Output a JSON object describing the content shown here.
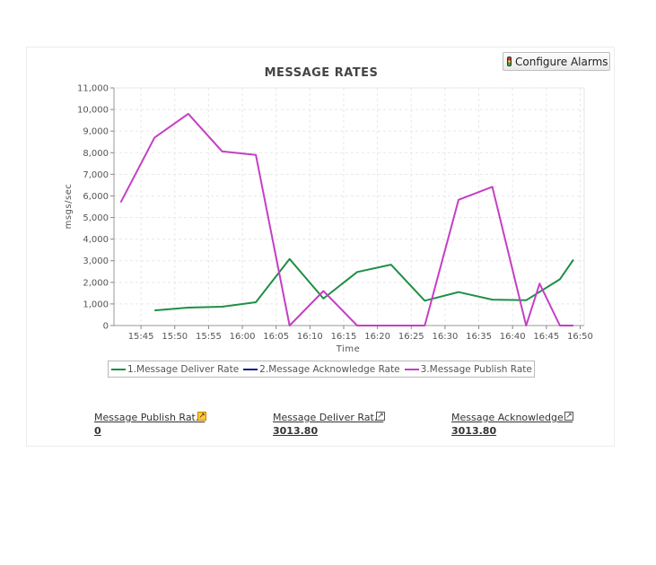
{
  "header": {
    "configure_alarms_label": "Configure Alarms"
  },
  "chart_data": {
    "type": "line",
    "title": "MESSAGE RATES",
    "xlabel": "Time",
    "ylabel": "msgs/sec",
    "ylim": [
      0,
      11000
    ],
    "y_ticks": [
      "0",
      "1,000",
      "2,000",
      "3,000",
      "4,000",
      "5,000",
      "6,000",
      "7,000",
      "8,000",
      "9,000",
      "10,000",
      "11,000"
    ],
    "x_ticks": [
      "15:45",
      "15:50",
      "15:55",
      "16:00",
      "16:05",
      "16:10",
      "16:15",
      "16:20",
      "16:25",
      "16:30",
      "16:35",
      "16:40",
      "16:45",
      "16:50"
    ],
    "grid": true,
    "legend_position": "bottom",
    "series": [
      {
        "name": "1.Message Deliver Rate",
        "color": "#1f8f45",
        "points": [
          [
            "15:47",
            700
          ],
          [
            "15:52",
            830
          ],
          [
            "15:57",
            870
          ],
          [
            "16:02",
            1080
          ],
          [
            "16:07",
            3080
          ],
          [
            "16:12",
            1250
          ],
          [
            "16:17",
            2480
          ],
          [
            "16:22",
            2820
          ],
          [
            "16:27",
            1150
          ],
          [
            "16:32",
            1550
          ],
          [
            "16:37",
            1200
          ],
          [
            "16:42",
            1170
          ],
          [
            "16:47",
            2140
          ],
          [
            "16:49",
            3050
          ]
        ]
      },
      {
        "name": "2.Message Acknowledge Rate",
        "color": "#1a1f8f",
        "points": []
      },
      {
        "name": "3.Message Publish Rate",
        "color": "#c43fc4",
        "points": [
          [
            "15:42",
            5700
          ],
          [
            "15:47",
            8700
          ],
          [
            "15:52",
            9800
          ],
          [
            "15:57",
            8060
          ],
          [
            "16:02",
            7900
          ],
          [
            "16:07",
            0
          ],
          [
            "16:12",
            1600
          ],
          [
            "16:17",
            0
          ],
          [
            "16:22",
            0
          ],
          [
            "16:27",
            0
          ],
          [
            "16:32",
            5820
          ],
          [
            "16:37",
            6420
          ],
          [
            "16:42",
            0
          ],
          [
            "16:44",
            1940
          ],
          [
            "16:47",
            0
          ],
          [
            "16:49",
            0
          ]
        ]
      }
    ]
  },
  "metrics": [
    {
      "name": "Message Publish Rat...",
      "value": "0"
    },
    {
      "name": "Message Deliver Rat...",
      "value": "3013.80"
    },
    {
      "name": "Message Acknowledge...",
      "value": "3013.80"
    }
  ]
}
